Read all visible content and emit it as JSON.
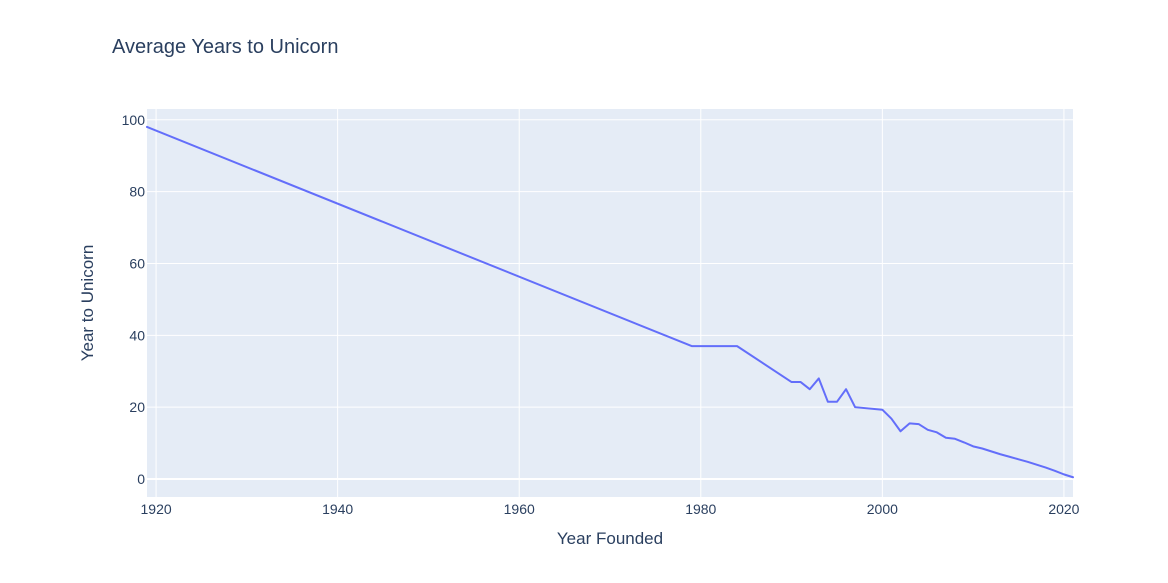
{
  "chart_data": {
    "type": "line",
    "title": "Average Years to Unicorn",
    "xlabel": "Year Founded",
    "ylabel": "Year to Unicorn",
    "xlim": [
      1919,
      2021
    ],
    "ylim": [
      -5,
      103
    ],
    "x_ticks": [
      1920,
      1940,
      1960,
      1980,
      2000,
      2020
    ],
    "y_ticks": [
      0,
      20,
      40,
      60,
      80,
      100
    ],
    "grid": true,
    "legend": false,
    "colors": {
      "line": "#636efa",
      "plot_bg": "#e5ecf6",
      "grid": "#ffffff",
      "text": "#2a3f5f"
    },
    "series": [
      {
        "x": [
          1919,
          1979,
          1980,
          1984,
          1990,
          1991,
          1992,
          1993,
          1994,
          1995,
          1996,
          1997,
          2000,
          2001,
          2002,
          2003,
          2004,
          2005,
          2006,
          2007,
          2008,
          2009,
          2010,
          2011,
          2012,
          2013,
          2014,
          2015,
          2016,
          2017,
          2018,
          2019,
          2020,
          2021
        ],
        "y": [
          98,
          37,
          37,
          37,
          27,
          27,
          25,
          28,
          21.5,
          21.5,
          25,
          20,
          19.3,
          16.8,
          13.3,
          15.5,
          15.3,
          13.7,
          13,
          11.5,
          11.2,
          10.2,
          9.1,
          8.5,
          7.7,
          6.9,
          6.2,
          5.5,
          4.8,
          4.0,
          3.2,
          2.3,
          1.3,
          0.5
        ]
      }
    ]
  }
}
